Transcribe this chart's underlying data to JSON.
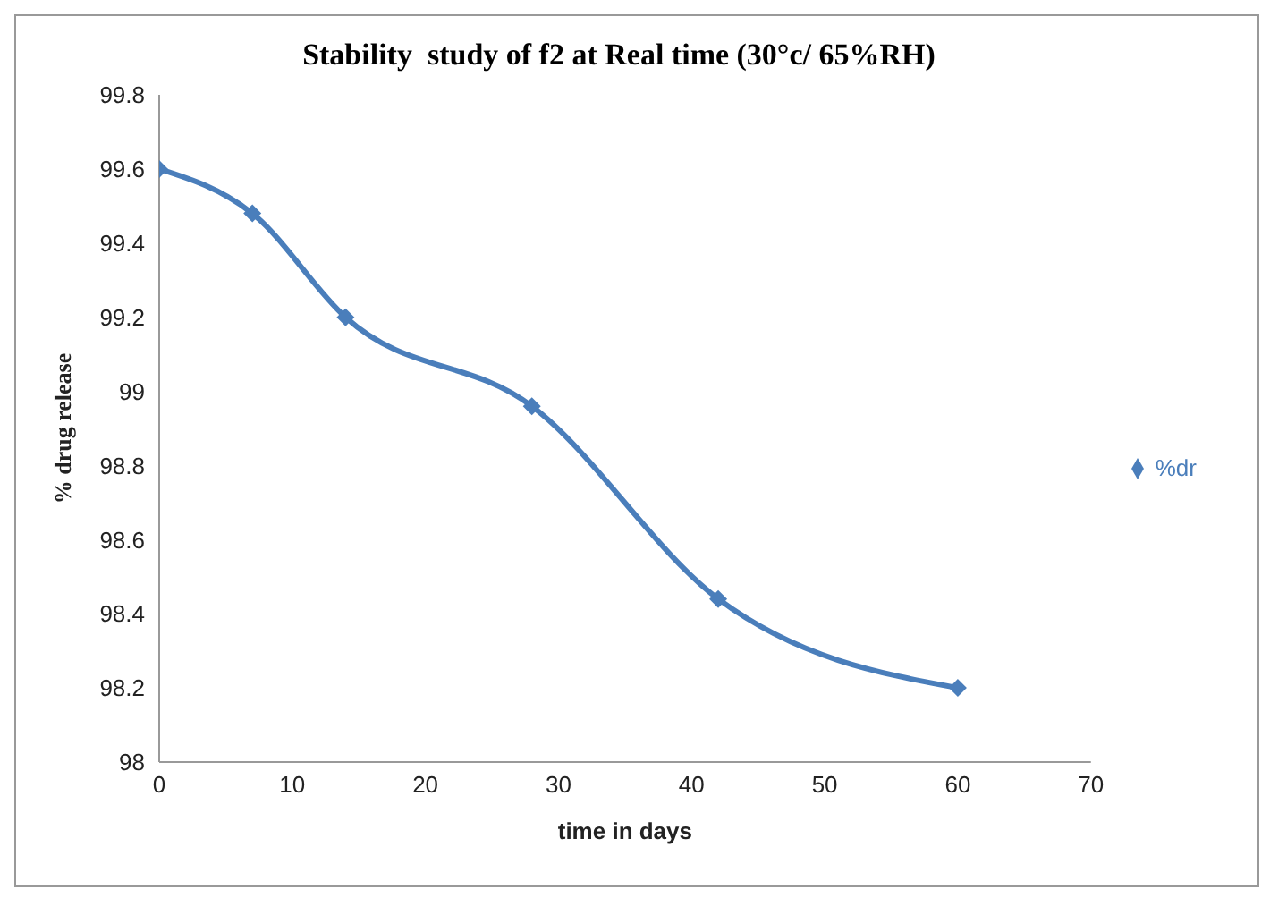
{
  "chart_data": {
    "type": "line",
    "title": "Stability  study of f2 at Real time (30°c/ 65%RH)",
    "xlabel": "time in days",
    "ylabel": "% drug release",
    "x": [
      0,
      7,
      14,
      28,
      42,
      60
    ],
    "series": [
      {
        "name": "%dr",
        "color": "#4a7ebb",
        "values": [
          99.6,
          99.48,
          99.2,
          98.96,
          98.44,
          98.2
        ]
      }
    ],
    "xlim": [
      0,
      70
    ],
    "xticks": [
      0,
      10,
      20,
      30,
      40,
      50,
      60,
      70
    ],
    "ylim": [
      98,
      99.8
    ],
    "yticks": [
      98,
      98.2,
      98.4,
      98.6,
      98.8,
      99,
      99.2,
      99.4,
      99.6,
      99.8
    ],
    "grid": false,
    "legend": "right",
    "marker": "diamond",
    "line_style": "solid"
  }
}
